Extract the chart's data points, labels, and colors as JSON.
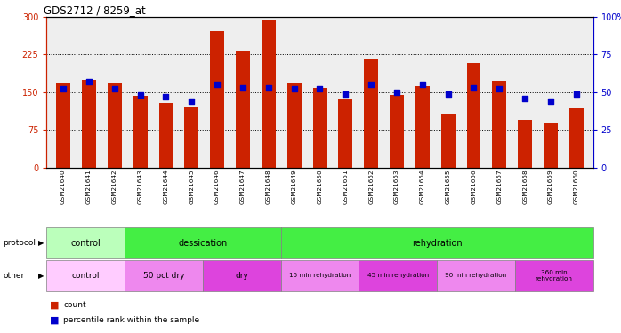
{
  "title": "GDS2712 / 8259_at",
  "samples": [
    "GSM21640",
    "GSM21641",
    "GSM21642",
    "GSM21643",
    "GSM21644",
    "GSM21645",
    "GSM21646",
    "GSM21647",
    "GSM21648",
    "GSM21649",
    "GSM21650",
    "GSM21651",
    "GSM21652",
    "GSM21653",
    "GSM21654",
    "GSM21655",
    "GSM21656",
    "GSM21657",
    "GSM21658",
    "GSM21659",
    "GSM21660"
  ],
  "counts": [
    170,
    175,
    168,
    143,
    128,
    120,
    272,
    232,
    295,
    170,
    158,
    138,
    215,
    145,
    162,
    108,
    208,
    173,
    95,
    88,
    118
  ],
  "percentile_ranks": [
    52,
    57,
    52,
    48,
    47,
    44,
    55,
    53,
    53,
    52,
    52,
    49,
    55,
    50,
    55,
    49,
    53,
    52,
    46,
    44,
    49
  ],
  "ylim_left": [
    0,
    300
  ],
  "ylim_right": [
    0,
    100
  ],
  "yticks_left": [
    0,
    75,
    150,
    225,
    300
  ],
  "yticks_right": [
    0,
    25,
    50,
    75,
    100
  ],
  "bar_color": "#cc2200",
  "square_color": "#0000cc",
  "left_tick_color": "#cc2200",
  "right_tick_color": "#0000cc",
  "protocol_data": [
    {
      "label": "control",
      "start": 0,
      "end": 3,
      "color": "#bbffbb"
    },
    {
      "label": "dessication",
      "start": 3,
      "end": 9,
      "color": "#44ee44"
    },
    {
      "label": "rehydration",
      "start": 9,
      "end": 21,
      "color": "#44ee44"
    }
  ],
  "other_data": [
    {
      "label": "control",
      "start": 0,
      "end": 3,
      "color": "#ffccff"
    },
    {
      "label": "50 pct dry",
      "start": 3,
      "end": 6,
      "color": "#ee88ee"
    },
    {
      "label": "dry",
      "start": 6,
      "end": 9,
      "color": "#dd44dd"
    },
    {
      "label": "15 min rehydration",
      "start": 9,
      "end": 12,
      "color": "#ee88ee"
    },
    {
      "label": "45 min rehydration",
      "start": 12,
      "end": 15,
      "color": "#dd44dd"
    },
    {
      "label": "90 min rehydration",
      "start": 15,
      "end": 18,
      "color": "#ee88ee"
    },
    {
      "label": "360 min\nrehydration",
      "start": 18,
      "end": 21,
      "color": "#dd44dd"
    }
  ],
  "fig_width": 6.98,
  "fig_height": 3.75,
  "dpi": 100
}
